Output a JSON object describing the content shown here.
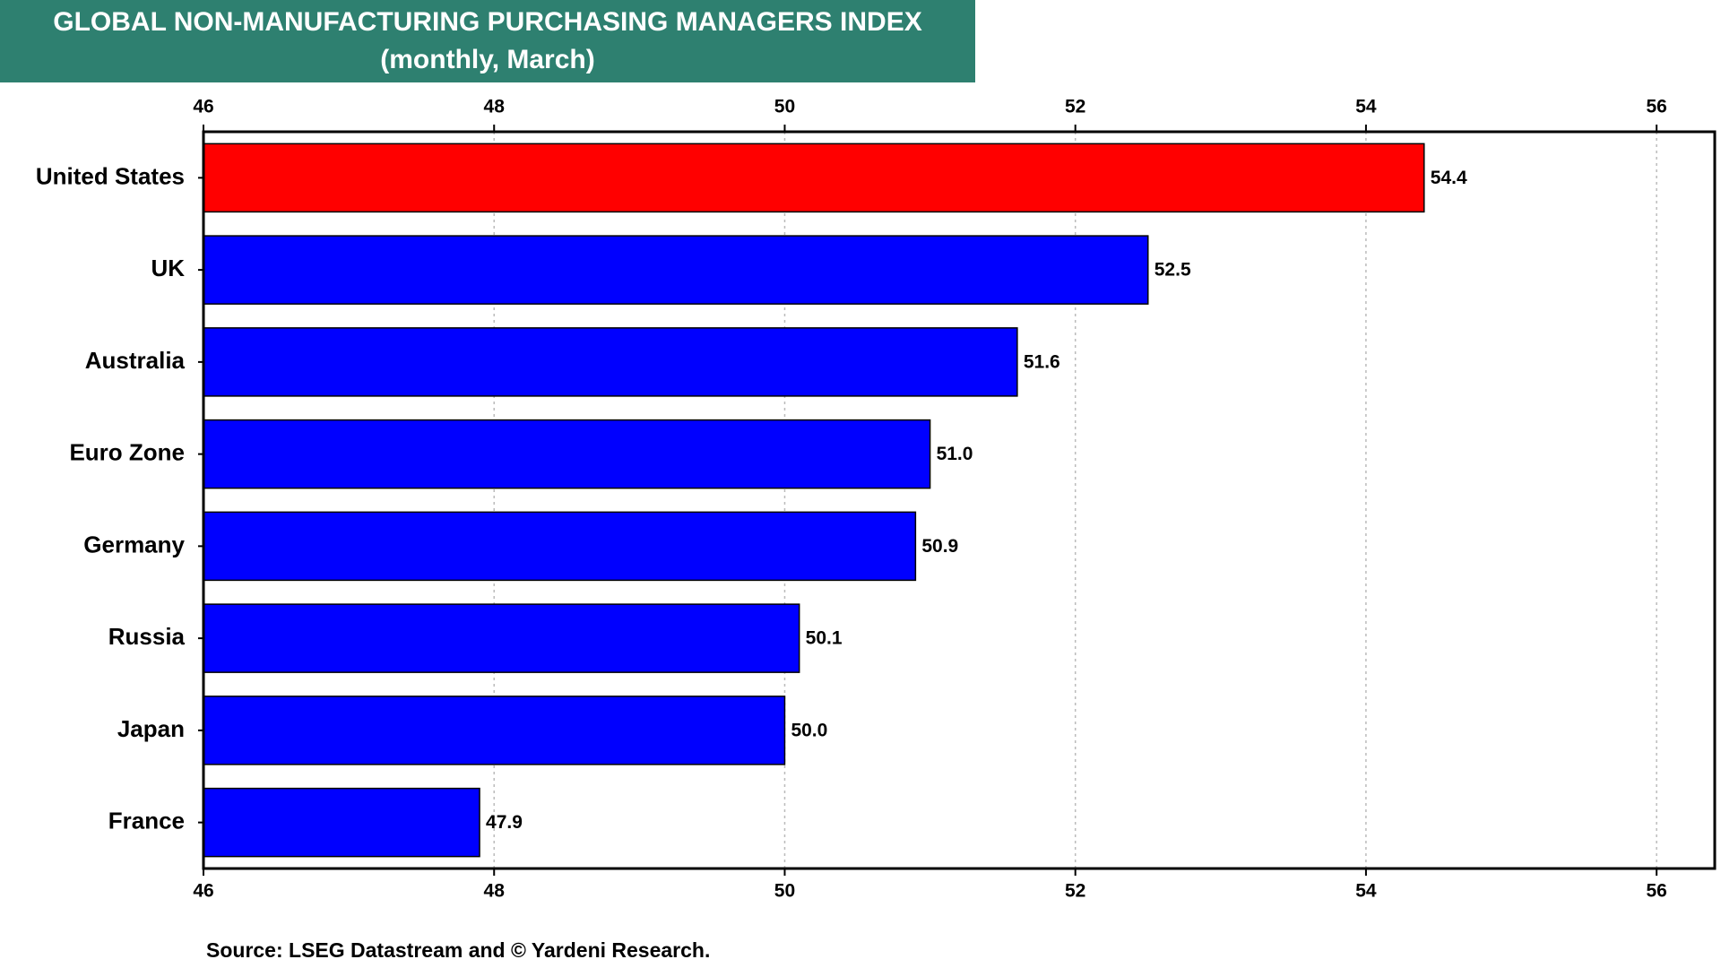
{
  "chart_data": {
    "type": "hbar",
    "title": "GLOBAL NON-MANUFACTURING PURCHASING MANAGERS INDEX",
    "subtitle": "(monthly, March)",
    "categories": [
      "United States",
      "UK",
      "Australia",
      "Euro Zone",
      "Germany",
      "Russia",
      "Japan",
      "France"
    ],
    "values": [
      54.4,
      52.5,
      51.6,
      51,
      50.9,
      50.1,
      50,
      47.9
    ],
    "value_labels": [
      "54.4",
      "52.5",
      "51.6",
      "51.0",
      "50.9",
      "50.1",
      "50.0",
      "47.9"
    ],
    "colors": [
      "#ff0000",
      "#0000ff",
      "#0000ff",
      "#0000ff",
      "#0000ff",
      "#0000ff",
      "#0000ff",
      "#0000ff"
    ],
    "xlim": [
      46,
      56.4
    ],
    "xticks": [
      46,
      48,
      50,
      52,
      54,
      56
    ],
    "grid": true,
    "source": "Source: LSEG Datastream and © Yardeni Research."
  }
}
